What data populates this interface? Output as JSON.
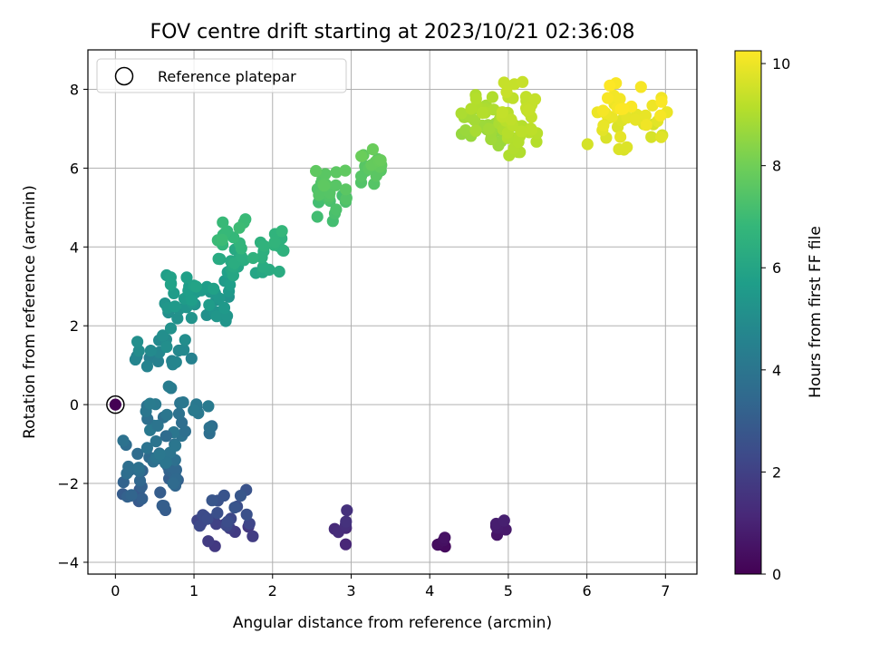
{
  "chart_data": {
    "type": "scatter",
    "title": "FOV centre drift starting at 2023/10/21 02:36:08",
    "xlabel": "Angular distance from reference (arcmin)",
    "ylabel": "Rotation from reference (arcmin)",
    "xlim": [
      -0.35,
      7.4
    ],
    "ylim": [
      -4.3,
      9.0
    ],
    "xticks": [
      0,
      1,
      2,
      3,
      4,
      5,
      6,
      7
    ],
    "yticks": [
      -4,
      -2,
      0,
      2,
      4,
      6,
      8
    ],
    "xtick_labels": [
      "0",
      "1",
      "2",
      "3",
      "4",
      "5",
      "6",
      "7"
    ],
    "ytick_labels": [
      "−4",
      "−2",
      "0",
      "2",
      "4",
      "6",
      "8"
    ],
    "grid": true,
    "legend": {
      "placement": "top-left",
      "entries": [
        {
          "label": "Reference platepar",
          "marker": "hollow-circle"
        }
      ]
    },
    "colorbar": {
      "label": "Hours from first FF file",
      "colormap": "viridis",
      "range": [
        0,
        10.25
      ],
      "ticks": [
        0,
        2,
        4,
        6,
        8,
        10
      ],
      "tick_labels": [
        "0",
        "2",
        "4",
        "6",
        "8",
        "10"
      ]
    },
    "reference_point": {
      "x": 0,
      "y": 0,
      "c": 0
    },
    "colormap_stops": [
      "#440154",
      "#482878",
      "#3e4989",
      "#31688e",
      "#26828e",
      "#1f9e89",
      "#35b779",
      "#6ece58",
      "#b5de2b",
      "#fde725"
    ],
    "clusters": [
      {
        "x": [
          4.1,
          4.2
        ],
        "y": [
          -3.65,
          -3.35
        ],
        "c": [
          0.2,
          0.5
        ],
        "n": 5
      },
      {
        "x": [
          4.8,
          4.97
        ],
        "y": [
          -3.35,
          -2.75
        ],
        "c": [
          0.6,
          0.9
        ],
        "n": 6
      },
      {
        "x": [
          2.72,
          2.95
        ],
        "y": [
          -3.65,
          -2.55
        ],
        "c": [
          1.1,
          1.5
        ],
        "n": 7
      },
      {
        "x": [
          1.0,
          1.75
        ],
        "y": [
          -3.7,
          -2.0
        ],
        "c": [
          1.7,
          2.8
        ],
        "n": 28
      },
      {
        "x": [
          0.08,
          0.85
        ],
        "y": [
          -2.8,
          -0.4
        ],
        "c": [
          2.9,
          4.1
        ],
        "n": 55
      },
      {
        "x": [
          0.35,
          1.3
        ],
        "y": [
          -0.95,
          0.55
        ],
        "c": [
          3.6,
          4.3
        ],
        "n": 25
      },
      {
        "x": [
          0.25,
          1.0
        ],
        "y": [
          0.75,
          2.0
        ],
        "c": [
          4.4,
          5.1
        ],
        "n": 20
      },
      {
        "x": [
          0.6,
          1.5
        ],
        "y": [
          1.8,
          3.6
        ],
        "c": [
          5.1,
          5.9
        ],
        "n": 45
      },
      {
        "x": [
          1.3,
          2.15
        ],
        "y": [
          3.0,
          4.95
        ],
        "c": [
          6.0,
          7.0
        ],
        "n": 45
      },
      {
        "x": [
          2.55,
          2.95
        ],
        "y": [
          4.5,
          6.15
        ],
        "c": [
          7.1,
          7.7
        ],
        "n": 30
      },
      {
        "x": [
          3.1,
          3.4
        ],
        "y": [
          5.35,
          6.7
        ],
        "c": [
          7.4,
          7.9
        ],
        "n": 20
      },
      {
        "x": [
          4.4,
          4.92
        ],
        "y": [
          6.3,
          8.05
        ],
        "c": [
          8.6,
          9.1
        ],
        "n": 40
      },
      {
        "x": [
          4.9,
          5.38
        ],
        "y": [
          6.2,
          8.35
        ],
        "c": [
          9.0,
          9.4
        ],
        "n": 45
      },
      {
        "x": [
          6.0,
          7.05
        ],
        "y": [
          6.25,
          8.3
        ],
        "c": [
          9.6,
          10.25
        ],
        "n": 45
      }
    ]
  }
}
